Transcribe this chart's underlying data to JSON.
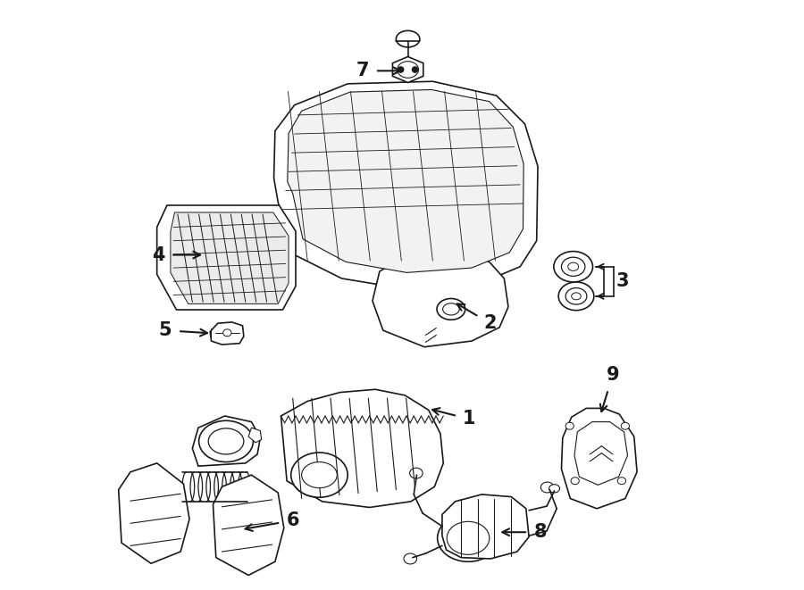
{
  "bg_color": "#ffffff",
  "line_color": "#1a1a1a",
  "lw": 1.2,
  "label_fontsize": 15
}
